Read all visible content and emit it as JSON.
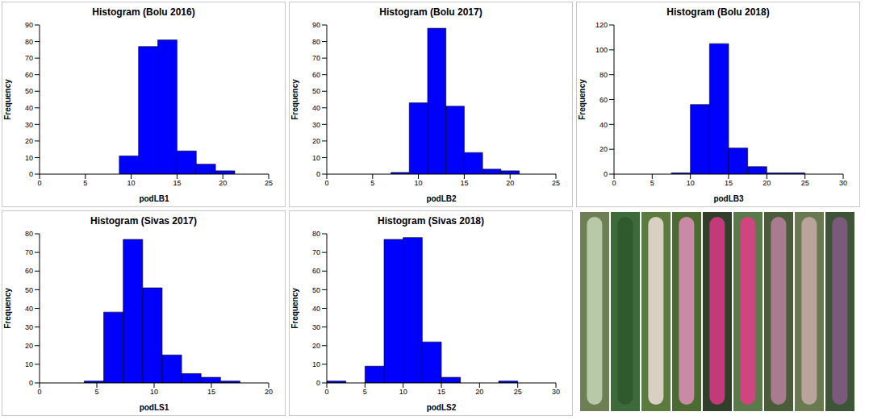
{
  "chart_data": [
    {
      "type": "histogram",
      "title": "Histogram (Bolu 2016)",
      "x_label": "podLB1",
      "y_label": "Frequency",
      "bins": [
        8.7,
        10.8,
        12.9,
        15.0,
        17.1,
        19.2,
        21.3
      ],
      "values": [
        11,
        77,
        81,
        14,
        6,
        2
      ],
      "color": "#0000ff",
      "xlim": [
        0,
        25
      ],
      "xticks": [
        0,
        5,
        10,
        15,
        20,
        25
      ],
      "ylim": [
        0,
        90
      ],
      "yticks": [
        0,
        10,
        20,
        30,
        40,
        50,
        60,
        70,
        80,
        90
      ],
      "grid": false
    },
    {
      "type": "histogram",
      "title": "Histogram (Bolu 2017)",
      "x_label": "podLB2",
      "y_label": "Frequency",
      "bins": [
        7,
        9,
        11,
        13,
        15,
        17,
        19,
        21
      ],
      "values": [
        1,
        43,
        88,
        41,
        13,
        3,
        2
      ],
      "color": "#0000ff",
      "xlim": [
        0,
        25
      ],
      "xticks": [
        0,
        5,
        10,
        15,
        20,
        25
      ],
      "ylim": [
        0,
        90
      ],
      "yticks": [
        0,
        10,
        20,
        30,
        40,
        50,
        60,
        70,
        80,
        90
      ],
      "grid": false
    },
    {
      "type": "histogram",
      "title": "Histogram (Bolu 2018)",
      "x_label": "podLB3",
      "y_label": "Frequency",
      "bins": [
        7.5,
        10,
        12.5,
        15,
        17.5,
        20,
        22.5,
        25
      ],
      "values": [
        1,
        56,
        105,
        21,
        6,
        1,
        1
      ],
      "color": "#0000ff",
      "xlim": [
        0,
        30
      ],
      "xticks": [
        0,
        5,
        10,
        15,
        20,
        25,
        30
      ],
      "ylim": [
        0,
        120
      ],
      "yticks": [
        0,
        20,
        40,
        60,
        80,
        100,
        120
      ],
      "grid": false
    },
    {
      "type": "histogram",
      "title": "Histogram (Sivas 2017)",
      "x_label": "podLS1",
      "y_label": "Frequency",
      "bins": [
        3.9,
        5.6,
        7.3,
        9.0,
        10.7,
        12.4,
        14.1,
        15.8,
        17.5
      ],
      "values": [
        1,
        38,
        77,
        51,
        15,
        5,
        3,
        1
      ],
      "color": "#0000ff",
      "xlim": [
        0,
        20
      ],
      "xticks": [
        0,
        5,
        10,
        15,
        20
      ],
      "ylim": [
        0,
        80
      ],
      "yticks": [
        0,
        10,
        20,
        30,
        40,
        50,
        60,
        70,
        80
      ],
      "grid": false
    },
    {
      "type": "histogram",
      "title": "Histogram (Sivas 2018)",
      "x_label": "podLS2",
      "y_label": "Frequency",
      "bins": [
        0,
        2.5,
        5,
        7.5,
        10,
        12.5,
        15,
        17.5,
        20,
        22.5,
        25
      ],
      "values": [
        1,
        0,
        9,
        77,
        78,
        22,
        3,
        0,
        0,
        1
      ],
      "color": "#0000ff",
      "xlim": [
        0,
        30
      ],
      "xticks": [
        0,
        5,
        10,
        15,
        20,
        25,
        30
      ],
      "ylim": [
        0,
        80
      ],
      "yticks": [
        0,
        10,
        20,
        30,
        40,
        50,
        60,
        70,
        80
      ],
      "grid": false
    }
  ]
}
